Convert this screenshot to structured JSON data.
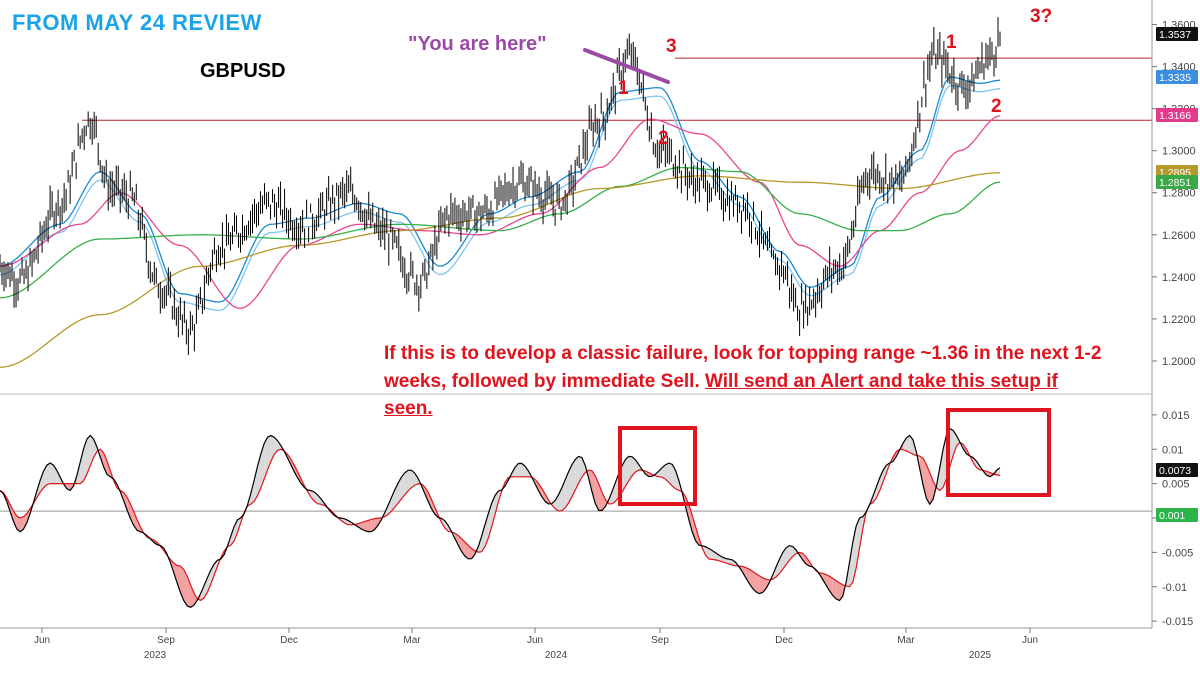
{
  "page": {
    "title": "FROM MAY 24 REVIEW",
    "symbol": "GBPUSD",
    "here_label": "\"You are here\"",
    "note_plain": "If this is to develop a classic failure, look for topping range ~1.36 in the next 1-2 weeks, followed by immediate Sell. ",
    "note_underlined": "Will send an Alert and take this setup if seen.",
    "wave_labels": [
      "1",
      "2",
      "3",
      "1",
      "2",
      "3?"
    ]
  },
  "colors": {
    "price_bar": "#000000",
    "ma_fast": "#1a8ad4",
    "ma_fast2": "#7fc4f0",
    "ma_mid": "#e9468f",
    "ma_slow": "#36b04a",
    "ma_200": "#b59a2a",
    "resistance": "#b3262a",
    "annotation": "#e0141e",
    "osc_fast": "#000000",
    "osc_slow": "#e0141e"
  },
  "chart_data": {
    "type": "line",
    "price_panel": {
      "y_ticks": [
        "1.3600",
        "1.3400",
        "1.3200",
        "1.3000",
        "1.2800",
        "1.2600",
        "1.2400",
        "1.2200",
        "1.2000"
      ],
      "ylim": [
        1.19,
        1.365
      ],
      "resistance_levels": [
        1.344,
        1.3145
      ],
      "price_badges": [
        {
          "value": "1.3537",
          "color": "#111111"
        },
        {
          "value": "1.3335",
          "color": "#3b8ee0"
        },
        {
          "value": "1.3166",
          "color": "#e33a8e"
        },
        {
          "value": "1.2895",
          "color": "#b59a2a"
        },
        {
          "value": "1.2851",
          "color": "#39a845"
        }
      ],
      "series": [
        {
          "role": "price",
          "x": [
            0,
            0.02,
            0.06,
            0.09,
            0.11,
            0.13,
            0.16,
            0.19,
            0.22,
            0.27,
            0.3,
            0.35,
            0.38,
            0.42,
            0.45,
            0.48,
            0.52,
            0.56,
            0.6,
            0.63,
            0.66,
            0.7,
            0.74,
            0.78,
            0.8,
            0.84,
            0.87,
            0.9,
            0.935,
            0.965,
            0.99,
            1.0
          ],
          "y": [
            1.245,
            1.238,
            1.275,
            1.315,
            1.282,
            1.278,
            1.235,
            1.215,
            1.255,
            1.275,
            1.265,
            1.28,
            1.262,
            1.238,
            1.27,
            1.27,
            1.285,
            1.275,
            1.315,
            1.345,
            1.3,
            1.285,
            1.275,
            1.245,
            1.225,
            1.245,
            1.29,
            1.285,
            1.345,
            1.33,
            1.345,
            1.3537
          ]
        },
        {
          "role": "ma_fast",
          "x": [
            0,
            0.06,
            0.1,
            0.14,
            0.18,
            0.22,
            0.27,
            0.31,
            0.36,
            0.4,
            0.44,
            0.49,
            0.53,
            0.58,
            0.62,
            0.66,
            0.7,
            0.74,
            0.78,
            0.81,
            0.85,
            0.88,
            0.92,
            0.95,
            0.98,
            1.0
          ],
          "y": [
            1.245,
            1.265,
            1.29,
            1.27,
            1.232,
            1.228,
            1.265,
            1.268,
            1.275,
            1.27,
            1.245,
            1.27,
            1.278,
            1.29,
            1.328,
            1.33,
            1.295,
            1.278,
            1.252,
            1.235,
            1.245,
            1.278,
            1.3,
            1.335,
            1.332,
            1.3335
          ]
        },
        {
          "role": "ma_mid",
          "x": [
            0,
            0.08,
            0.12,
            0.18,
            0.24,
            0.3,
            0.36,
            0.42,
            0.48,
            0.54,
            0.6,
            0.65,
            0.7,
            0.76,
            0.8,
            0.84,
            0.88,
            0.92,
            0.96,
            1.0
          ],
          "y": [
            1.245,
            1.265,
            1.28,
            1.255,
            1.225,
            1.255,
            1.265,
            1.262,
            1.26,
            1.27,
            1.292,
            1.315,
            1.308,
            1.285,
            1.255,
            1.245,
            1.262,
            1.28,
            1.3,
            1.3166
          ]
        },
        {
          "role": "ma_slow",
          "x": [
            0,
            0.1,
            0.2,
            0.3,
            0.4,
            0.5,
            0.56,
            0.62,
            0.68,
            0.74,
            0.8,
            0.86,
            0.9,
            0.95,
            1.0
          ],
          "y": [
            1.23,
            1.258,
            1.26,
            1.258,
            1.265,
            1.262,
            1.27,
            1.283,
            1.292,
            1.29,
            1.27,
            1.262,
            1.262,
            1.27,
            1.2851
          ]
        },
        {
          "role": "ma_200",
          "x": [
            0,
            0.1,
            0.2,
            0.3,
            0.4,
            0.5,
            0.6,
            0.7,
            0.8,
            0.9,
            1.0
          ],
          "y": [
            1.197,
            1.222,
            1.245,
            1.255,
            1.262,
            1.268,
            1.282,
            1.288,
            1.285,
            1.282,
            1.2895
          ]
        }
      ]
    },
    "oscillator_panel": {
      "y_ticks": [
        "0.015",
        "0.01",
        "0.005",
        "0",
        "-0.005",
        "-0.01",
        "-0.015"
      ],
      "ylim": [
        -0.016,
        0.016
      ],
      "zero_line": 0.001,
      "badges": [
        {
          "value": "0.0073",
          "color": "#111111"
        },
        {
          "value": "0.001",
          "color": "#2cb34a"
        }
      ],
      "series": [
        {
          "role": "fast",
          "x": [
            0,
            0.02,
            0.05,
            0.07,
            0.09,
            0.11,
            0.14,
            0.16,
            0.19,
            0.22,
            0.24,
            0.27,
            0.31,
            0.34,
            0.37,
            0.41,
            0.44,
            0.47,
            0.5,
            0.52,
            0.55,
            0.58,
            0.6,
            0.63,
            0.65,
            0.67,
            0.7,
            0.73,
            0.76,
            0.79,
            0.81,
            0.84,
            0.86,
            0.89,
            0.91,
            0.93,
            0.95,
            0.97,
            0.99,
            1.0
          ],
          "y": [
            0.004,
            -0.002,
            0.008,
            0.004,
            0.012,
            0.006,
            -0.002,
            -0.004,
            -0.013,
            -0.006,
            0.0,
            0.012,
            0.004,
            0.0,
            -0.002,
            0.007,
            0.0,
            -0.006,
            0.004,
            0.008,
            0.002,
            0.009,
            0.001,
            0.009,
            0.006,
            0.008,
            -0.004,
            -0.006,
            -0.011,
            -0.004,
            -0.007,
            -0.012,
            0.0,
            0.008,
            0.012,
            0.002,
            0.013,
            0.009,
            0.006,
            0.0073
          ]
        },
        {
          "role": "slow",
          "x": [
            0,
            0.02,
            0.05,
            0.08,
            0.1,
            0.12,
            0.15,
            0.18,
            0.2,
            0.23,
            0.25,
            0.28,
            0.32,
            0.35,
            0.38,
            0.42,
            0.45,
            0.48,
            0.51,
            0.53,
            0.56,
            0.59,
            0.61,
            0.64,
            0.66,
            0.68,
            0.71,
            0.74,
            0.77,
            0.8,
            0.82,
            0.85,
            0.87,
            0.9,
            0.92,
            0.94,
            0.96,
            0.98,
            1.0
          ],
          "y": [
            0.004,
            0.0,
            0.005,
            0.005,
            0.01,
            0.004,
            -0.003,
            -0.007,
            -0.012,
            -0.004,
            0.002,
            0.01,
            0.002,
            -0.001,
            0.0,
            0.005,
            -0.002,
            -0.005,
            0.006,
            0.006,
            0.001,
            0.007,
            0.002,
            0.007,
            0.006,
            0.004,
            -0.006,
            -0.007,
            -0.009,
            -0.005,
            -0.008,
            -0.01,
            0.002,
            0.01,
            0.009,
            0.004,
            0.011,
            0.007,
            0.0062
          ]
        }
      ]
    },
    "x_axis": {
      "month_ticks": [
        "Jun",
        "Sep",
        "Dec",
        "Mar",
        "Jun",
        "Sep",
        "Dec",
        "Mar",
        "Jun"
      ],
      "year_labels": [
        "2023",
        "2024",
        "2025"
      ]
    }
  }
}
